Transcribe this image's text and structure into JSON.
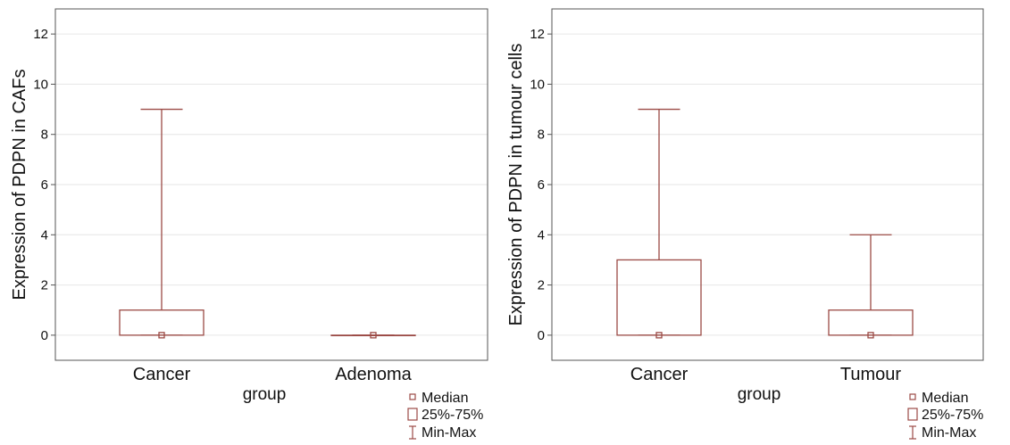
{
  "chart_data": [
    {
      "type": "box",
      "xlabel": "group",
      "ylabel": "Expression of PDPN in CAFs",
      "ylim": [
        -1,
        13
      ],
      "yticks": [
        0,
        2,
        4,
        6,
        8,
        10,
        12
      ],
      "grid": true,
      "categories": [
        "Cancer",
        "Adenoma"
      ],
      "boxes": [
        {
          "category": "Cancer",
          "min": 0,
          "q1": 0,
          "median": 0,
          "q3": 1,
          "max": 9
        },
        {
          "category": "Adenoma",
          "min": 0,
          "q1": 0,
          "median": 0,
          "q3": 0,
          "max": 0
        }
      ],
      "legend": {
        "placement": "bottom-right",
        "items": [
          "Median",
          "25%-75%",
          "Min-Max"
        ]
      }
    },
    {
      "type": "box",
      "xlabel": "group",
      "ylabel": "Expression of PDPN in tumour cells",
      "ylim": [
        -1,
        13
      ],
      "yticks": [
        0,
        2,
        4,
        6,
        8,
        10,
        12
      ],
      "grid": true,
      "categories": [
        "Cancer",
        "Tumour"
      ],
      "boxes": [
        {
          "category": "Cancer",
          "min": 0,
          "q1": 0,
          "median": 0,
          "q3": 3,
          "max": 9
        },
        {
          "category": "Tumour",
          "min": 0,
          "q1": 0,
          "median": 0,
          "q3": 1,
          "max": 4
        }
      ],
      "legend": {
        "placement": "bottom-right",
        "items": [
          "Median",
          "25%-75%",
          "Min-Max"
        ]
      }
    }
  ],
  "colors": {
    "box": "#9b4a45",
    "axis": "#555555",
    "grid": "#e6e6e6"
  }
}
